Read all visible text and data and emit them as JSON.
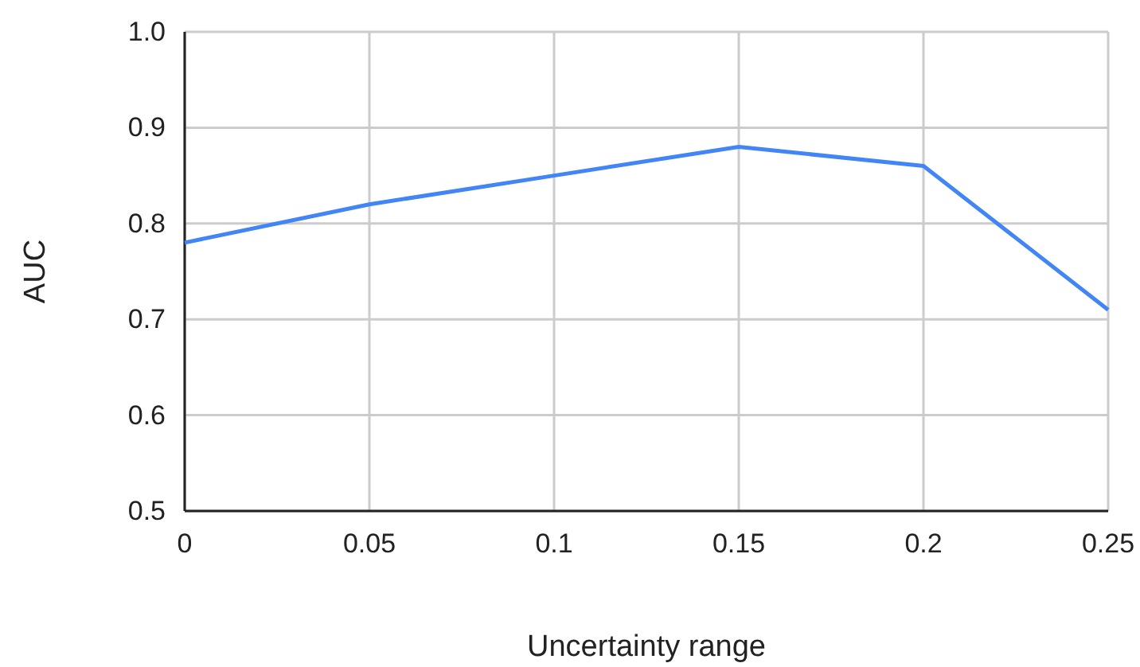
{
  "chart_data": {
    "type": "line",
    "xlabel": "Uncertainty range",
    "ylabel": "AUC",
    "x": [
      0,
      0.05,
      0.1,
      0.15,
      0.2,
      0.25
    ],
    "series": [
      {
        "color": "#4285f4",
        "values": [
          0.78,
          0.82,
          0.85,
          0.88,
          0.86,
          0.71
        ]
      }
    ],
    "xlim": [
      0,
      0.25
    ],
    "xticks": [
      0,
      0.05,
      0.1,
      0.15,
      0.2,
      0.25
    ],
    "ylim": [
      0.5,
      1.0
    ],
    "yticks": [
      0.5,
      0.6,
      0.7,
      0.8,
      0.9,
      {
        "value": 1.0,
        "label": "1.0"
      }
    ],
    "grid": true,
    "marker": "none",
    "line_style": "solid"
  }
}
